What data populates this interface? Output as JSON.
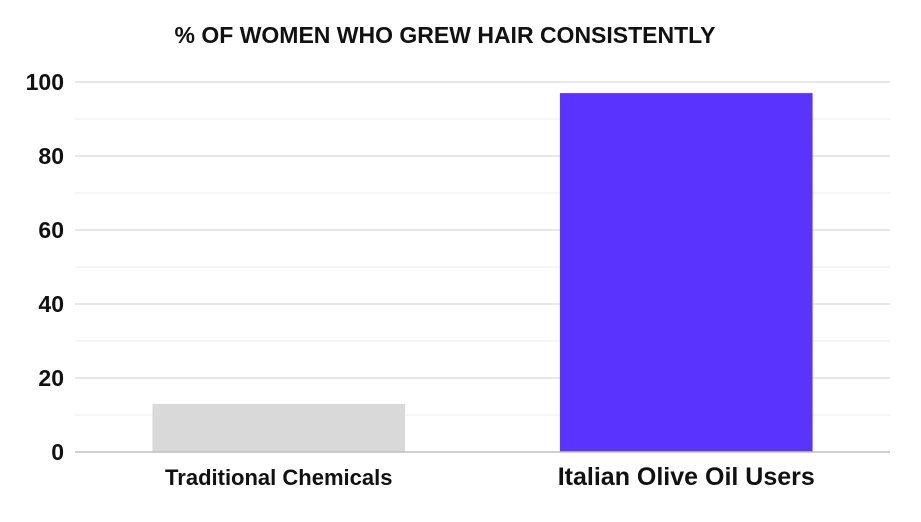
{
  "chart_data": {
    "type": "bar",
    "title": "% OF WOMEN WHO GREW  HAIR CONSISTENTLY",
    "xlabel": "",
    "ylabel": "",
    "categories": [
      "Traditional Chemicals",
      "Italian Olive Oil Users"
    ],
    "values": [
      13,
      97
    ],
    "bar_colors": [
      "#d9d9d9",
      "#5b33ff"
    ],
    "ylim": [
      0,
      100
    ],
    "yticks": [
      0,
      20,
      40,
      60,
      80,
      100
    ],
    "grid": true,
    "legend": "none"
  }
}
